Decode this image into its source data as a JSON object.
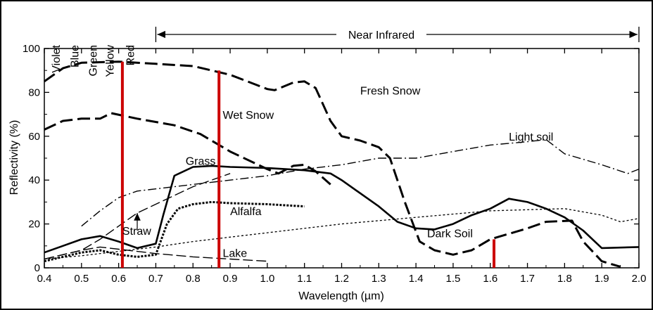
{
  "chart_data": {
    "type": "line",
    "xlabel": "Wavelength (µm)",
    "ylabel": "Reflectivity (%)",
    "xlim": [
      0.4,
      2.0
    ],
    "ylim": [
      0,
      100
    ],
    "xticks": [
      "0.4",
      "0.5",
      "0.6",
      "0.7",
      "0.8",
      "0.9",
      "1.0",
      "1.1",
      "1.2",
      "1.3",
      "1.4",
      "1.5",
      "1.6",
      "1.7",
      "1.8",
      "1.9",
      "2.0"
    ],
    "yticks": [
      "0",
      "20",
      "40",
      "60",
      "80",
      "100"
    ],
    "bands": [
      {
        "label": "Violet",
        "x": 0.43
      },
      {
        "label": "Blue",
        "x": 0.48
      },
      {
        "label": "Green",
        "x": 0.53
      },
      {
        "label": "Yellow",
        "x": 0.575
      },
      {
        "label": "Red",
        "x": 0.63
      }
    ],
    "near_infrared": {
      "label": "Near Infrared",
      "from": 0.7,
      "to": 2.0
    },
    "series": [
      {
        "name": "Fresh Snow",
        "style": "longdash",
        "width": 3,
        "label_at": [
          1.25,
          79
        ],
        "points": [
          [
            0.4,
            85
          ],
          [
            0.45,
            91
          ],
          [
            0.5,
            93.5
          ],
          [
            0.6,
            94
          ],
          [
            0.7,
            93
          ],
          [
            0.8,
            92
          ],
          [
            0.9,
            88
          ],
          [
            1.0,
            81.5
          ],
          [
            1.02,
            81
          ],
          [
            1.07,
            84.5
          ],
          [
            1.1,
            85
          ],
          [
            1.13,
            82
          ],
          [
            1.17,
            67
          ],
          [
            1.2,
            60
          ],
          [
            1.25,
            58
          ],
          [
            1.3,
            55
          ],
          [
            1.33,
            50
          ],
          [
            1.37,
            30
          ],
          [
            1.41,
            12
          ],
          [
            1.45,
            8
          ],
          [
            1.5,
            6
          ],
          [
            1.55,
            8
          ],
          [
            1.6,
            13
          ],
          [
            1.7,
            18
          ],
          [
            1.75,
            21
          ],
          [
            1.82,
            21.5
          ],
          [
            1.85,
            12
          ],
          [
            1.9,
            3
          ],
          [
            1.95,
            0.5
          ]
        ]
      },
      {
        "name": "Wet Snow",
        "style": "longdash",
        "width": 3,
        "label_at": [
          0.88,
          68
        ],
        "points": [
          [
            0.4,
            63
          ],
          [
            0.45,
            67
          ],
          [
            0.5,
            68
          ],
          [
            0.55,
            68
          ],
          [
            0.58,
            70.5
          ],
          [
            0.65,
            68
          ],
          [
            0.75,
            65
          ],
          [
            0.82,
            61
          ],
          [
            0.9,
            53
          ],
          [
            1.0,
            45
          ],
          [
            1.03,
            43
          ],
          [
            1.07,
            46.5
          ],
          [
            1.1,
            47
          ],
          [
            1.13,
            44
          ],
          [
            1.17,
            38
          ]
        ]
      },
      {
        "name": "Light soil",
        "style": "dashdot",
        "width": 1.4,
        "label_at": [
          1.65,
          58
        ],
        "points": [
          [
            0.5,
            19
          ],
          [
            0.55,
            26
          ],
          [
            0.6,
            32
          ],
          [
            0.65,
            35
          ],
          [
            0.7,
            36
          ],
          [
            0.8,
            38
          ],
          [
            0.9,
            40
          ],
          [
            1.0,
            42
          ],
          [
            1.1,
            45
          ],
          [
            1.2,
            47
          ],
          [
            1.3,
            50
          ],
          [
            1.4,
            50
          ],
          [
            1.5,
            53
          ],
          [
            1.6,
            56
          ],
          [
            1.7,
            57.5
          ],
          [
            1.75,
            58.5
          ],
          [
            1.8,
            52
          ],
          [
            1.9,
            47
          ],
          [
            1.97,
            43
          ],
          [
            2.0,
            45
          ]
        ]
      },
      {
        "name": "Grass",
        "style": "solid",
        "width": 2.6,
        "label_at": [
          0.78,
          47
        ],
        "points": [
          [
            0.4,
            7
          ],
          [
            0.45,
            10
          ],
          [
            0.5,
            13
          ],
          [
            0.55,
            14.5
          ],
          [
            0.6,
            12
          ],
          [
            0.65,
            9
          ],
          [
            0.7,
            11
          ],
          [
            0.72,
            24
          ],
          [
            0.75,
            42
          ],
          [
            0.8,
            46
          ],
          [
            0.85,
            46.5
          ],
          [
            0.9,
            46
          ],
          [
            1.0,
            45.5
          ],
          [
            1.1,
            44.5
          ],
          [
            1.17,
            43
          ],
          [
            1.2,
            40
          ],
          [
            1.3,
            28
          ],
          [
            1.35,
            21
          ],
          [
            1.4,
            18
          ],
          [
            1.45,
            17.5
          ],
          [
            1.5,
            20
          ],
          [
            1.55,
            24
          ],
          [
            1.6,
            27
          ],
          [
            1.65,
            31.5
          ],
          [
            1.7,
            30
          ],
          [
            1.75,
            27
          ],
          [
            1.8,
            23
          ],
          [
            1.85,
            17
          ],
          [
            1.9,
            9
          ],
          [
            2.0,
            9.5
          ]
        ]
      },
      {
        "name": "Alfalfa",
        "style": "dotted",
        "width": 3,
        "label_at": [
          0.9,
          24
        ],
        "points": [
          [
            0.4,
            3
          ],
          [
            0.45,
            5
          ],
          [
            0.5,
            7
          ],
          [
            0.55,
            8
          ],
          [
            0.6,
            6
          ],
          [
            0.65,
            5
          ],
          [
            0.7,
            6
          ],
          [
            0.73,
            20
          ],
          [
            0.76,
            27
          ],
          [
            0.8,
            29
          ],
          [
            0.85,
            30
          ],
          [
            0.9,
            29.5
          ],
          [
            1.0,
            29
          ],
          [
            1.1,
            28
          ]
        ]
      },
      {
        "name": "Straw",
        "style": "longdash-thin",
        "width": 1.4,
        "label_at": [
          0.61,
          15
        ],
        "points": [
          [
            0.4,
            4
          ],
          [
            0.5,
            8
          ],
          [
            0.55,
            13
          ],
          [
            0.6,
            19
          ],
          [
            0.65,
            25
          ],
          [
            0.7,
            29
          ],
          [
            0.75,
            33
          ],
          [
            0.8,
            37
          ],
          [
            0.85,
            40
          ],
          [
            0.9,
            43
          ]
        ]
      },
      {
        "name": "Dark Soil",
        "style": "dotted-thin",
        "width": 1.3,
        "label_at": [
          1.43,
          14
        ],
        "points": [
          [
            0.4,
            4
          ],
          [
            0.5,
            5.5
          ],
          [
            0.6,
            7.5
          ],
          [
            0.7,
            9.5
          ],
          [
            0.8,
            12
          ],
          [
            0.9,
            14
          ],
          [
            1.0,
            16
          ],
          [
            1.2,
            20
          ],
          [
            1.4,
            23
          ],
          [
            1.6,
            26
          ],
          [
            1.8,
            27
          ],
          [
            1.9,
            24
          ],
          [
            1.95,
            21
          ],
          [
            2.0,
            22.5
          ]
        ]
      },
      {
        "name": "Lake",
        "style": "longdash-thin",
        "width": 1.4,
        "label_at": [
          0.88,
          5
        ],
        "points": [
          [
            0.4,
            4
          ],
          [
            0.45,
            6
          ],
          [
            0.5,
            8
          ],
          [
            0.55,
            9.5
          ],
          [
            0.6,
            8.5
          ],
          [
            0.7,
            6.5
          ],
          [
            0.8,
            5
          ],
          [
            0.9,
            4
          ],
          [
            1.0,
            3
          ]
        ]
      }
    ],
    "markers": [
      {
        "x": 0.61,
        "from": 0,
        "to": 94,
        "color": "#cc0000"
      },
      {
        "x": 0.87,
        "from": 0,
        "to": 90,
        "color": "#cc0000"
      },
      {
        "x": 1.61,
        "from": 0,
        "to": 13,
        "color": "#cc0000"
      }
    ],
    "annotation_arrow": {
      "label": "Straw",
      "from": [
        0.65,
        17
      ],
      "to": [
        0.65,
        25
      ]
    }
  }
}
